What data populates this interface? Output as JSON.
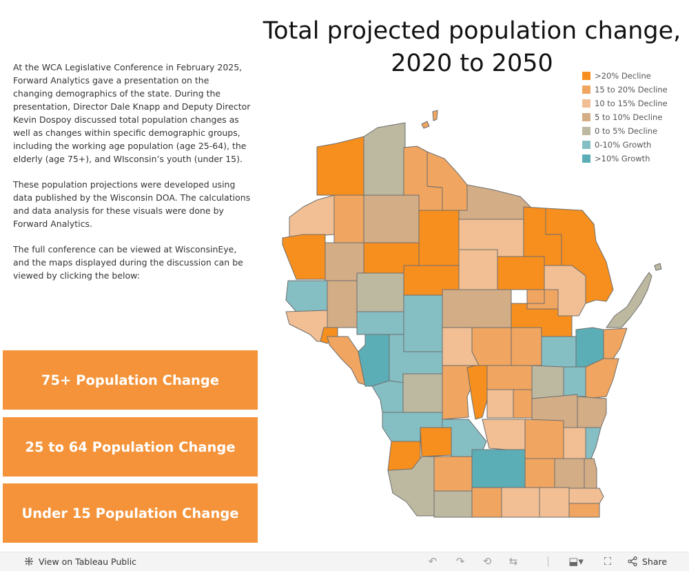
{
  "title_line1": "Total projected population change,",
  "title_line2": "2020 to 2050",
  "intro": {
    "p1": "At the WCA Legislative Conference in February 2025, Forward Analytics gave a presentation on the changing demographics of the state. During the presentation, Director Dale Knapp and Deputy Director Kevin Dospoy discussed total population changes as well as changes within specific demographic groups, including the working age population (age 25-64), the elderly (age 75+), and WIsconsin’s youth (under 15).",
    "p2": "These population projections were developed using data published by the Wisconsin DOA. The calculations and data analysis for these visuals were done by Forward Analytics.",
    "p3": "The full conference can be viewed at WisconsinEye, and the maps displayed during the discussion can be viewed by clicking the below:"
  },
  "buttons": {
    "b1": "75+ Population Change",
    "b2": "25 to 64 Population Change",
    "b3": "Under 15 Population Change"
  },
  "legend": [
    {
      "label": ">20% Decline",
      "color": "#f78f1e"
    },
    {
      "label": "15 to 20% Decline",
      "color": "#f0a560"
    },
    {
      "label": "10 to 15% Decline",
      "color": "#f1bf93"
    },
    {
      "label": "5 to 10% Decline",
      "color": "#d3ad86"
    },
    {
      "label": "0 to 5% Decline",
      "color": "#bdb8a0"
    },
    {
      "label": "0-10% Growth",
      "color": "#85bfc4"
    },
    {
      "label": ">10% Growth",
      "color": "#5caeb6"
    }
  ],
  "toolbar": {
    "view_label": "View on Tableau Public",
    "share_label": "Share",
    "undo_icon": "undo-icon",
    "redo_icon": "redo-icon",
    "revert_icon": "revert-icon",
    "refresh_icon": "refresh-icon",
    "download_icon": "download-icon",
    "fullscreen_icon": "fullscreen-icon",
    "share_icon": "share-icon",
    "tableau_icon": "tableau-logo-icon"
  }
}
